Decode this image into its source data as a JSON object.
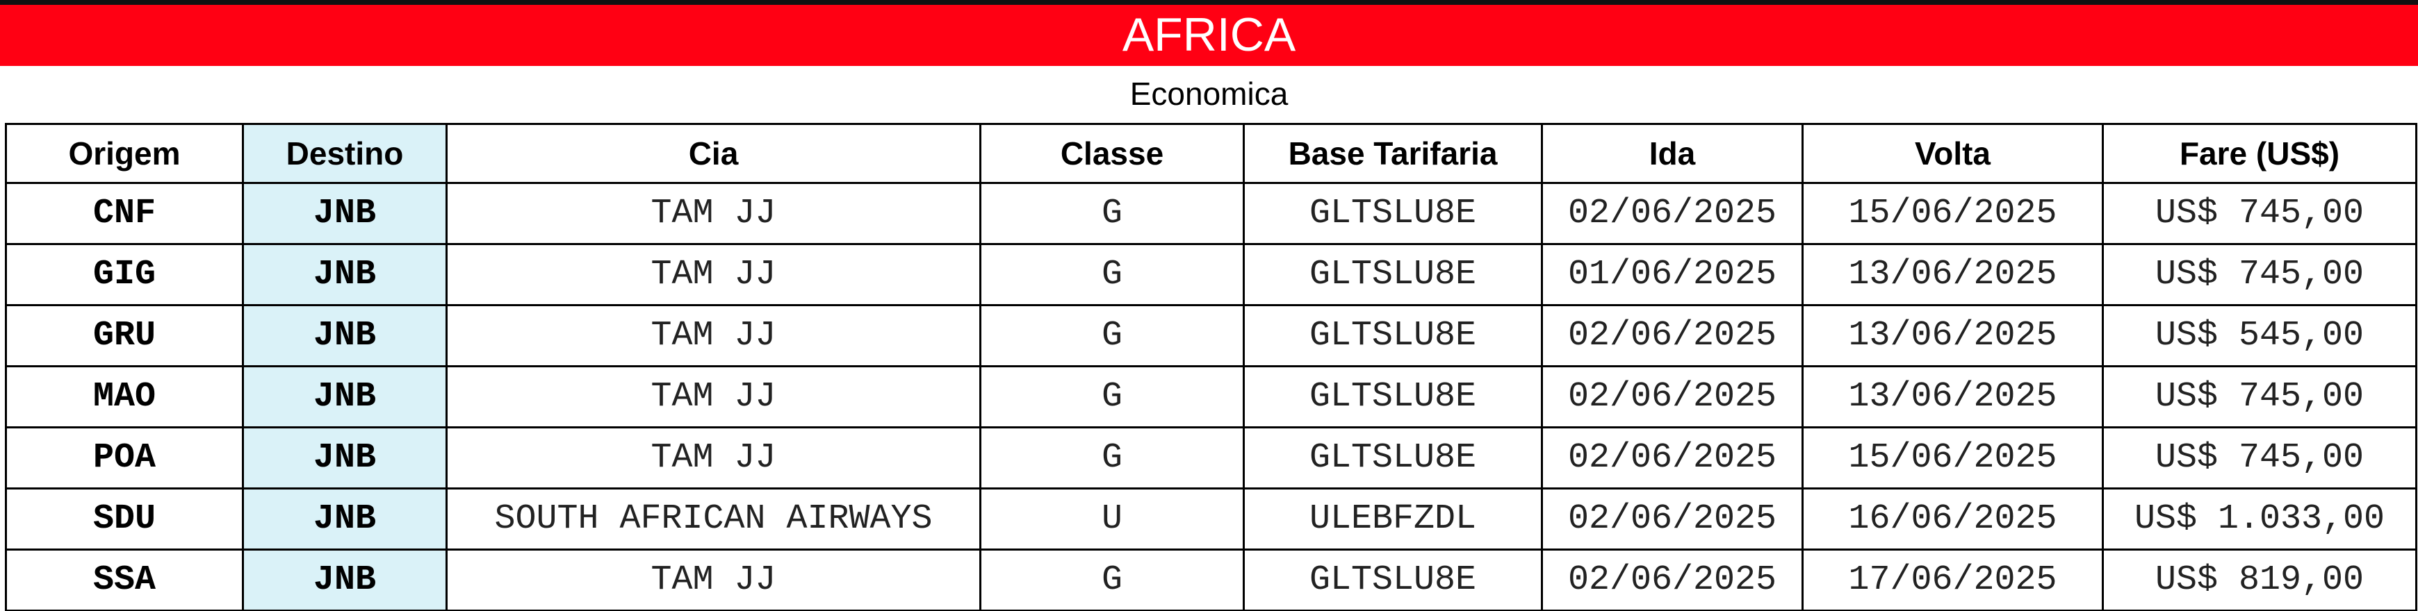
{
  "header": {
    "title": "AFRICA",
    "subtitle": "Economica"
  },
  "table": {
    "columns": [
      "Origem",
      "Destino",
      "Cia",
      "Classe",
      "Base Tarifaria",
      "Ida",
      "Volta",
      "Fare (US$)"
    ],
    "rows": [
      [
        "CNF",
        "JNB",
        "TAM JJ",
        "G",
        "GLTSLU8E",
        "02/06/2025",
        "15/06/2025",
        "US$ 745,00"
      ],
      [
        "GIG",
        "JNB",
        "TAM JJ",
        "G",
        "GLTSLU8E",
        "01/06/2025",
        "13/06/2025",
        "US$ 745,00"
      ],
      [
        "GRU",
        "JNB",
        "TAM JJ",
        "G",
        "GLTSLU8E",
        "02/06/2025",
        "13/06/2025",
        "US$ 545,00"
      ],
      [
        "MAO",
        "JNB",
        "TAM JJ",
        "G",
        "GLTSLU8E",
        "02/06/2025",
        "13/06/2025",
        "US$ 745,00"
      ],
      [
        "POA",
        "JNB",
        "TAM JJ",
        "G",
        "GLTSLU8E",
        "02/06/2025",
        "15/06/2025",
        "US$ 745,00"
      ],
      [
        "SDU",
        "JNB",
        "SOUTH AFRICAN AIRWAYS",
        "U",
        "ULEBFZDL",
        "02/06/2025",
        "16/06/2025",
        "US$ 1.033,00"
      ],
      [
        "SSA",
        "JNB",
        "TAM JJ",
        "G",
        "GLTSLU8E",
        "02/06/2025",
        "17/06/2025",
        "US$ 819,00"
      ]
    ]
  }
}
